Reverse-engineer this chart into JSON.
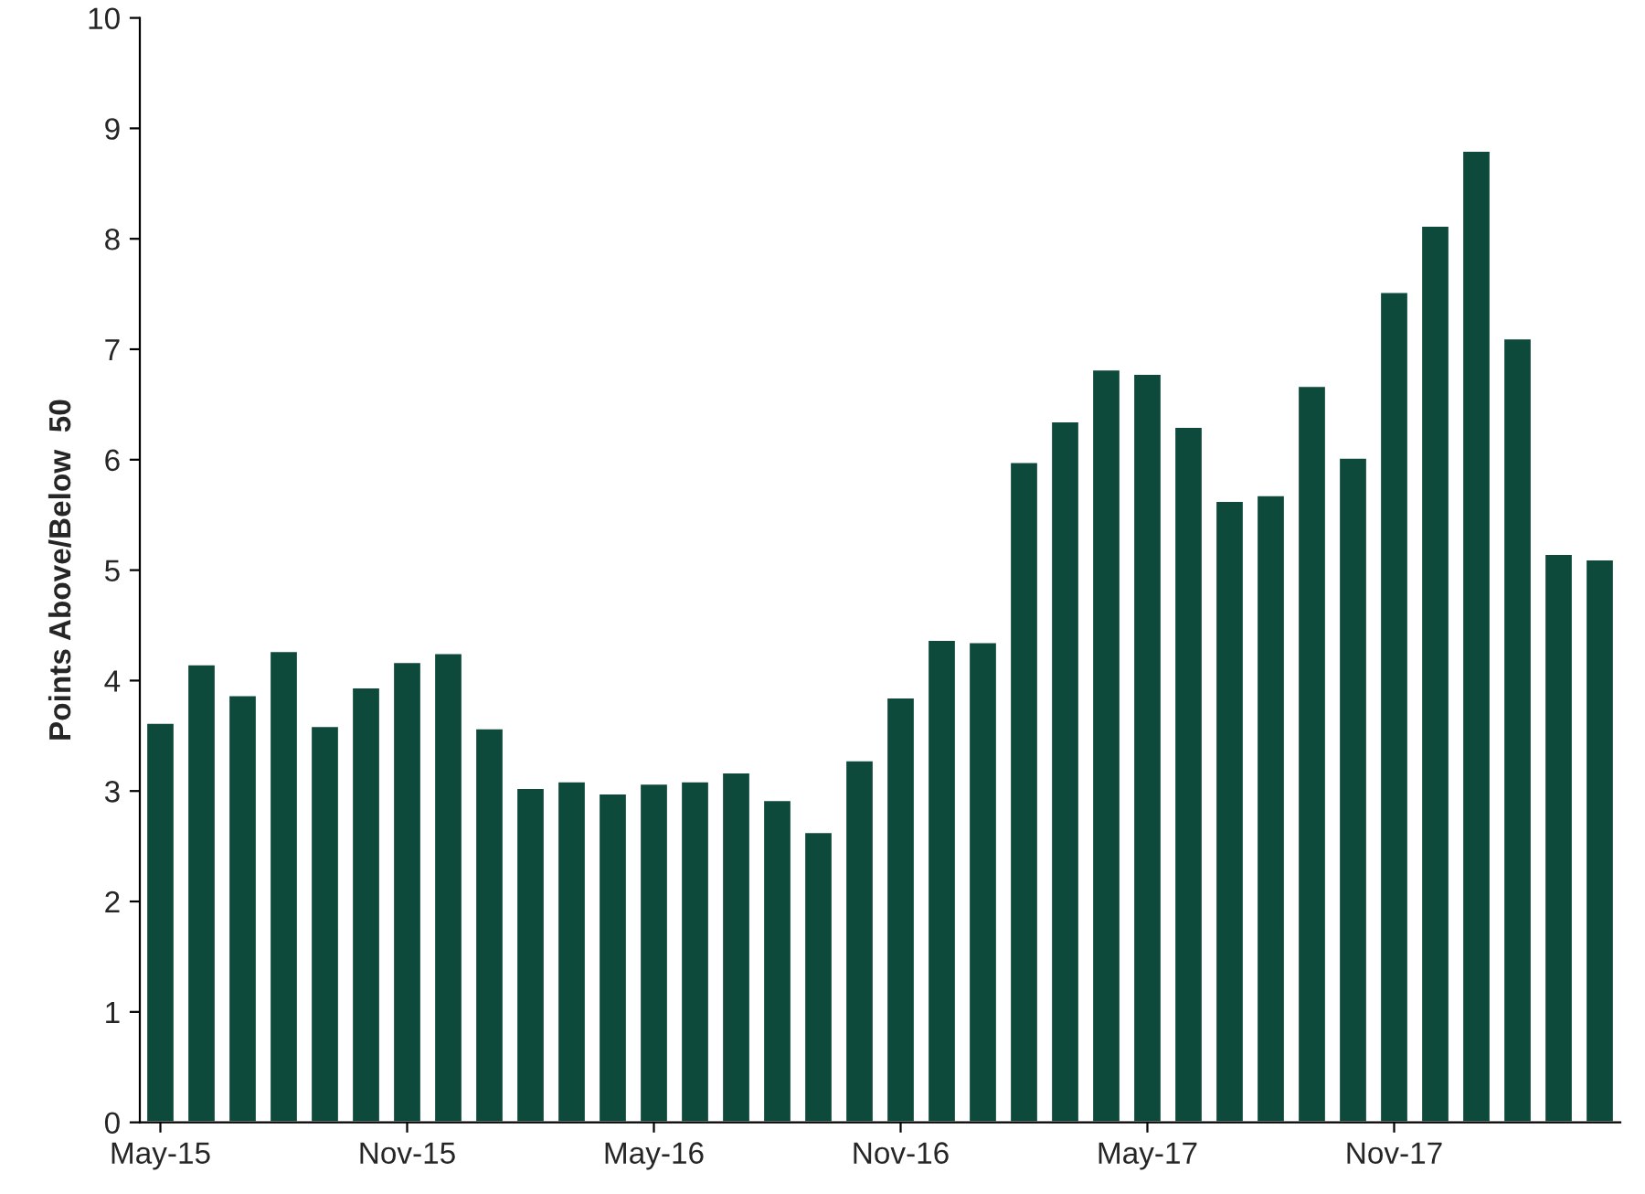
{
  "chart_data": {
    "type": "bar",
    "ylabel": "Points Above/Below  50",
    "categories": [
      "May-15",
      null,
      null,
      null,
      null,
      null,
      "Nov-15",
      null,
      null,
      null,
      null,
      null,
      "May-16",
      null,
      null,
      null,
      null,
      null,
      "Nov-16",
      null,
      null,
      null,
      null,
      null,
      "May-17",
      null,
      null,
      null,
      null,
      null,
      "Nov-17",
      null,
      null,
      null,
      null,
      null
    ],
    "values": [
      3.62,
      4.15,
      3.87,
      4.27,
      3.59,
      3.94,
      4.17,
      4.25,
      3.57,
      3.03,
      3.09,
      2.98,
      3.07,
      3.09,
      3.17,
      2.92,
      2.63,
      3.28,
      3.85,
      4.37,
      4.35,
      5.98,
      6.35,
      6.82,
      6.78,
      6.3,
      5.63,
      5.68,
      6.67,
      6.02,
      7.52,
      8.12,
      8.8,
      7.1,
      5.15,
      5.1
    ],
    "color": "#0d4a3b",
    "ylim": [
      0,
      10
    ],
    "yticks": [
      0,
      1,
      2,
      3,
      4,
      5,
      6,
      7,
      8,
      9,
      10
    ],
    "grid": false
  }
}
